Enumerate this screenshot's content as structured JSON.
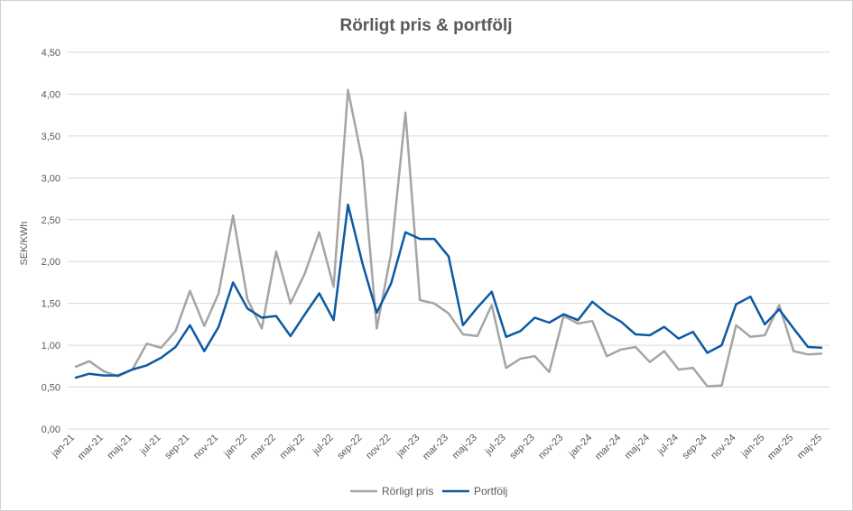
{
  "chart_data": {
    "type": "line",
    "title": "Rörligt pris & portfölj",
    "ylabel": "SEK/KWh",
    "xlabel": "",
    "ylim": [
      0,
      4.5
    ],
    "yticks": [
      "0,00",
      "0,50",
      "1,00",
      "1,50",
      "2,00",
      "2,50",
      "3,00",
      "3,50",
      "4,00",
      "4,50"
    ],
    "grid": "horizontal",
    "legend_position": "bottom",
    "categories": [
      "jan-21",
      "feb-21",
      "mar-21",
      "apr-21",
      "maj-21",
      "jun-21",
      "jul-21",
      "aug-21",
      "sep-21",
      "okt-21",
      "nov-21",
      "dec-21",
      "jan-22",
      "feb-22",
      "mar-22",
      "apr-22",
      "maj-22",
      "jun-22",
      "jul-22",
      "aug-22",
      "sep-22",
      "okt-22",
      "nov-22",
      "dec-22",
      "jan-23",
      "feb-23",
      "mar-23",
      "apr-23",
      "maj-23",
      "jun-23",
      "jul-23",
      "aug-23",
      "sep-23",
      "okt-23",
      "nov-23",
      "dec-23",
      "jan-24",
      "feb-24",
      "mar-24",
      "apr-24",
      "maj-24",
      "jun-24",
      "jul-24",
      "aug-24",
      "sep-24",
      "okt-24",
      "nov-24",
      "dec-24",
      "jan-25",
      "feb-25",
      "mar-25",
      "apr-25",
      "maj-25"
    ],
    "xtick_labels": [
      "jan-21",
      "mar-21",
      "maj-21",
      "jul-21",
      "sep-21",
      "nov-21",
      "jan-22",
      "mar-22",
      "maj-22",
      "jul-22",
      "sep-22",
      "nov-22",
      "jan-23",
      "mar-23",
      "maj-23",
      "jul-23",
      "sep-23",
      "nov-23",
      "jan-24",
      "mar-24",
      "maj-24",
      "jul-24",
      "sep-24",
      "nov-24",
      "jan-25",
      "mar-25",
      "maj-25"
    ],
    "series": [
      {
        "name": "Rörligt pris",
        "color": "#a5a5a5",
        "values": [
          0.74,
          0.81,
          0.69,
          0.63,
          0.71,
          1.02,
          0.97,
          1.17,
          1.65,
          1.23,
          1.62,
          2.55,
          1.55,
          1.2,
          2.12,
          1.5,
          1.86,
          2.35,
          1.7,
          4.05,
          3.2,
          1.2,
          2.1,
          3.78,
          1.54,
          1.5,
          1.38,
          1.13,
          1.11,
          1.48,
          0.73,
          0.84,
          0.87,
          0.68,
          1.35,
          1.26,
          1.29,
          0.87,
          0.95,
          0.98,
          0.8,
          0.93,
          0.71,
          0.73,
          0.51,
          0.52,
          1.24,
          1.1,
          1.12,
          1.48,
          0.93,
          0.89,
          0.9
        ]
      },
      {
        "name": "Portfölj",
        "color": "#0b5aa3",
        "values": [
          0.61,
          0.66,
          0.64,
          0.64,
          0.71,
          0.76,
          0.85,
          0.98,
          1.24,
          0.93,
          1.22,
          1.75,
          1.44,
          1.33,
          1.35,
          1.11,
          1.37,
          1.62,
          1.3,
          2.68,
          1.98,
          1.39,
          1.74,
          2.35,
          2.27,
          2.27,
          2.06,
          1.24,
          1.45,
          1.64,
          1.1,
          1.17,
          1.33,
          1.27,
          1.37,
          1.3,
          1.52,
          1.38,
          1.28,
          1.13,
          1.12,
          1.22,
          1.08,
          1.16,
          0.91,
          1.0,
          1.49,
          1.58,
          1.25,
          1.43,
          1.2,
          0.98,
          0.97
        ]
      }
    ]
  }
}
